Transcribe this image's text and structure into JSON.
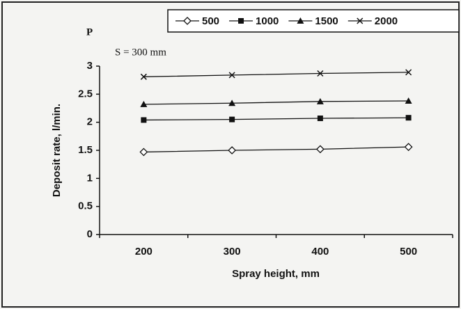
{
  "chart_data": {
    "type": "line",
    "title": "P",
    "subtitle": "S = 300 mm",
    "x_label": "Spray height, mm",
    "y_label": "Deposit rate, l/min.",
    "categories": [
      "200",
      "300",
      "400",
      "500"
    ],
    "series": [
      {
        "name": "500",
        "color": "#111111",
        "marker": "diamond-open",
        "values": [
          1.47,
          1.5,
          1.52,
          1.56
        ]
      },
      {
        "name": "1000",
        "color": "#111111",
        "marker": "square",
        "values": [
          2.04,
          2.05,
          2.07,
          2.08
        ]
      },
      {
        "name": "1500",
        "color": "#111111",
        "marker": "triangle",
        "values": [
          2.32,
          2.34,
          2.37,
          2.38
        ]
      },
      {
        "name": "2000",
        "color": "#111111",
        "marker": "x",
        "values": [
          2.81,
          2.84,
          2.87,
          2.89
        ]
      }
    ],
    "ylim": [
      0,
      3
    ],
    "yticks": [
      0,
      0.5,
      1,
      1.5,
      2,
      2.5,
      3
    ],
    "grid": false,
    "legend": "top-right"
  }
}
